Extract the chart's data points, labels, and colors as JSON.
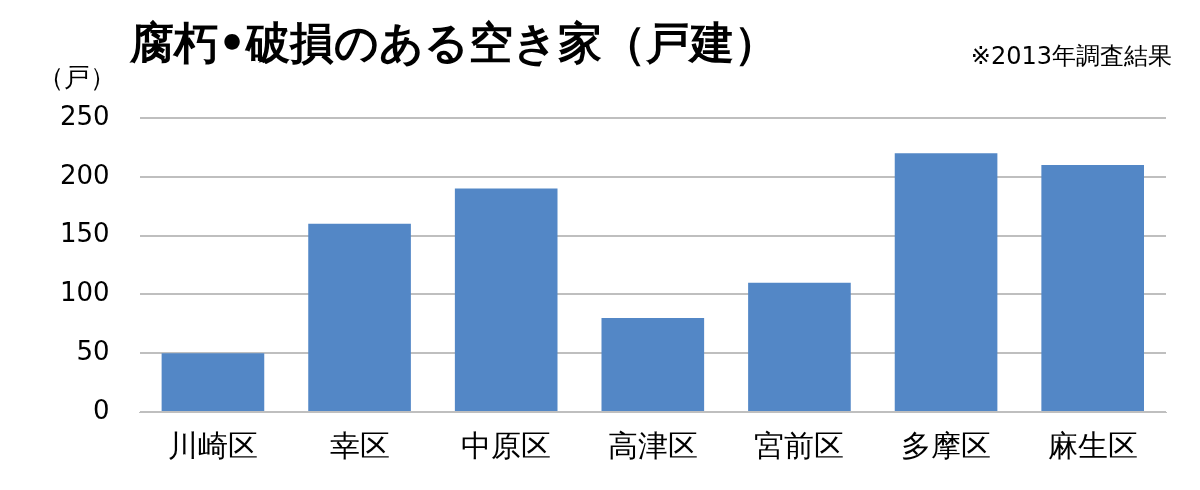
{
  "chart_data": {
    "type": "bar",
    "title": "腐朽•破損のある空き家（戸建）",
    "ylabel": "（戸）",
    "annotations": [
      "※2013年調査結果"
    ],
    "categories": [
      "川崎区",
      "幸区",
      "中原区",
      "高津区",
      "宮前区",
      "多摩区",
      "麻生区"
    ],
    "values": [
      50,
      160,
      190,
      80,
      110,
      220,
      210
    ],
    "color": "#5387c6",
    "ylim": [
      0,
      250
    ],
    "yticks": [
      0,
      50,
      100,
      150,
      200,
      250
    ],
    "grid": "y",
    "legend": false
  }
}
